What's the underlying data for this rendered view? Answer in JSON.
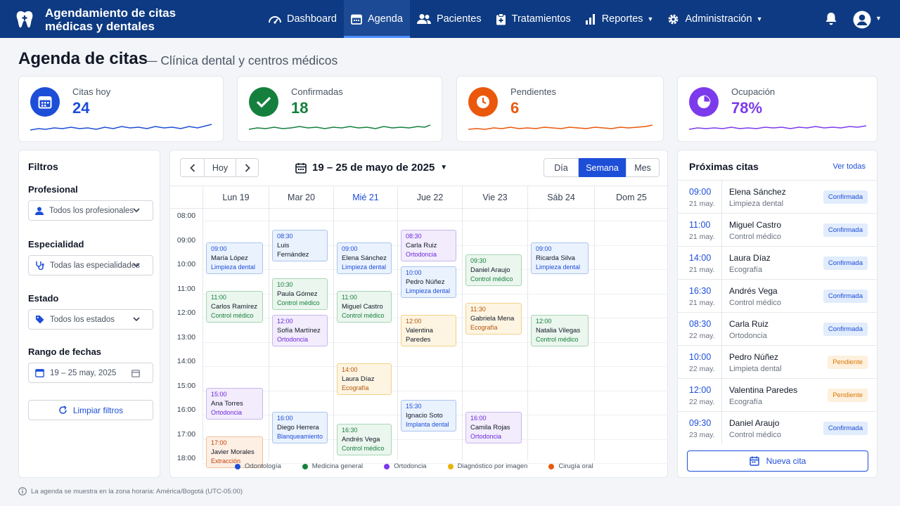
{
  "app": {
    "title": "Agendamiento de citas médicas y dentales"
  },
  "nav": {
    "items": [
      {
        "label": "Dashboard",
        "icon": "gauge-icon"
      },
      {
        "label": "Agenda",
        "icon": "calendar-icon",
        "active": true
      },
      {
        "label": "Pacientes",
        "icon": "users-icon"
      },
      {
        "label": "Tratamientos",
        "icon": "clipboard-icon"
      },
      {
        "label": "Reportes",
        "icon": "bar-chart-icon",
        "dropdown": true
      },
      {
        "label": "Administración",
        "icon": "gear-icon",
        "dropdown": true
      }
    ]
  },
  "page": {
    "title": "Agenda de citas",
    "subtitle": "— Clínica dental y centros médicos"
  },
  "stats": [
    {
      "label": "Citas hoy",
      "value": "24",
      "color": "#1d4ed8",
      "icon": "calendar-icon"
    },
    {
      "label": "Confirmadas",
      "value": "18",
      "color": "#15803d",
      "icon": "check-icon"
    },
    {
      "label": "Pendientes",
      "value": "6",
      "color": "#ea580c",
      "icon": "clock-icon"
    },
    {
      "label": "Ocupación",
      "value": "78%",
      "color": "#7c3aed",
      "icon": "pie-icon"
    }
  ],
  "filters": {
    "title": "Filtros",
    "profesional": {
      "label": "Profesional",
      "value": "Todos los profesionales"
    },
    "especialidad": {
      "label": "Especialidad",
      "value": "Todas las especialidades"
    },
    "estado": {
      "label": "Estado",
      "value": "Todos los estados"
    },
    "rango": {
      "label": "Rango de fechas",
      "value": "19 – 25 may, 2025"
    },
    "clear": "Limpiar filtros"
  },
  "calendar": {
    "today_btn": "Hoy",
    "range": "19 – 25 de mayo de 2025",
    "views": [
      "Día",
      "Semana",
      "Mes"
    ],
    "active_view": "Semana",
    "days": [
      "Lun 19",
      "Mar 20",
      "Mié 21",
      "Jue 22",
      "Vie 23",
      "Sáb 24",
      "Dom 25"
    ],
    "today_index": 2,
    "hours": [
      "08:00",
      "09:00",
      "10:00",
      "11:00",
      "12:00",
      "13:00",
      "14:00",
      "15:00",
      "16:00",
      "17:00",
      "18:00"
    ],
    "appointments": [
      {
        "day": 0,
        "start": "09:00",
        "time": "09:00",
        "name": "María López",
        "treatment": "Limpieza dental",
        "type": "odontologia"
      },
      {
        "day": 0,
        "start": "11:00",
        "time": "11:00",
        "name": "Carlos Ramírez",
        "treatment": "Control médico",
        "type": "medicina"
      },
      {
        "day": 0,
        "start": "15:00",
        "time": "15:00",
        "name": "Ana Torres",
        "treatment": "Ortodoncia",
        "type": "ortodoncia"
      },
      {
        "day": 0,
        "start": "17:00",
        "time": "17:00",
        "name": "Javier Morales",
        "treatment": "Extracción dental",
        "type": "cirugia"
      },
      {
        "day": 1,
        "start": "08:30",
        "time": "08:30",
        "name": "Luis Fernández",
        "treatment": "Limpieza dental",
        "type": "odontologia"
      },
      {
        "day": 1,
        "start": "10:30",
        "time": "10:30",
        "name": "Paula Gómez",
        "treatment": "Control médico",
        "type": "medicina"
      },
      {
        "day": 1,
        "start": "12:00",
        "time": "12:00",
        "name": "Sofía Martínez",
        "treatment": "Ortodoncia",
        "type": "ortodoncia"
      },
      {
        "day": 1,
        "start": "16:00",
        "time": "16:00",
        "name": "Diego Herrera",
        "treatment": "Blanqueamiento",
        "type": "odontologia"
      },
      {
        "day": 2,
        "start": "09:00",
        "time": "09:00",
        "name": "Elena Sánchez",
        "treatment": "Limpieza dental",
        "type": "odontologia"
      },
      {
        "day": 2,
        "start": "11:00",
        "time": "11:00",
        "name": "Miguel Castro",
        "treatment": "Control médico",
        "type": "medicina"
      },
      {
        "day": 2,
        "start": "14:00",
        "time": "14:00",
        "name": "Laura Díaz",
        "treatment": "Ecografía",
        "type": "diagnostico"
      },
      {
        "day": 2,
        "start": "16:30",
        "time": "16:30",
        "name": "Andrés Vega",
        "treatment": "Control médico",
        "type": "medicina"
      },
      {
        "day": 3,
        "start": "08:30",
        "time": "08:30",
        "name": "Carla Ruiz",
        "treatment": "Ortodoncia",
        "type": "ortodoncia"
      },
      {
        "day": 3,
        "start": "10:00",
        "time": "10:00",
        "name": "Pedro Núñez",
        "treatment": "Limpieza dental",
        "type": "odontologia"
      },
      {
        "day": 3,
        "start": "12:00",
        "time": "12:00",
        "name": "Valentina Paredes",
        "treatment": "Ecografía",
        "type": "diagnostico"
      },
      {
        "day": 3,
        "start": "15:30",
        "time": "15:30",
        "name": "Ignacio Soto",
        "treatment": "Implanta dental",
        "type": "odontologia"
      },
      {
        "day": 4,
        "start": "09:30",
        "time": "09:30",
        "name": "Daniel Araujo",
        "treatment": "Control médico",
        "type": "medicina"
      },
      {
        "day": 4,
        "start": "11:30",
        "time": "11:30",
        "name": "Gabriela Mena",
        "treatment": "Ecografía",
        "type": "diagnostico"
      },
      {
        "day": 4,
        "start": "16:00",
        "time": "16:00",
        "name": "Camila Rojas",
        "treatment": "Ortodoncia",
        "type": "ortodoncia"
      },
      {
        "day": 5,
        "start": "09:00",
        "time": "09:00",
        "name": "Ricarda Silva",
        "treatment": "Limpieza dental",
        "type": "odontologia"
      },
      {
        "day": 5,
        "start": "12:00",
        "time": "12:00",
        "name": "Natalia Vilegas",
        "treatment": "Control médico",
        "type": "medicina"
      }
    ],
    "legend": [
      {
        "key": "odontologia",
        "label": "Odontología",
        "color": "#1d4ed8"
      },
      {
        "key": "medicina",
        "label": "Medicina general",
        "color": "#15803d"
      },
      {
        "key": "ortodoncia",
        "label": "Ortodoncia",
        "color": "#7c3aed"
      },
      {
        "key": "diagnostico",
        "label": "Diagnóstico por imagen",
        "color": "#eab308"
      },
      {
        "key": "cirugia",
        "label": "Cirugía oral",
        "color": "#ea580c"
      }
    ]
  },
  "upcoming": {
    "title": "Próximas citas",
    "see_all": "Ver todas",
    "items": [
      {
        "time": "09:00",
        "date": "21 may.",
        "name": "Elena Sánchez",
        "treatment": "Limpieza dental",
        "status": "Confirmada",
        "kind": "ok"
      },
      {
        "time": "11:00",
        "date": "21 may.",
        "name": "Miguel Castro",
        "treatment": "Control médico",
        "status": "Confirmada",
        "kind": "ok"
      },
      {
        "time": "14:00",
        "date": "21 may.",
        "name": "Laura Díaz",
        "treatment": "Ecografía",
        "status": "Confirmada",
        "kind": "ok"
      },
      {
        "time": "16:30",
        "date": "21 may.",
        "name": "Andrés Vega",
        "treatment": "Control médico",
        "status": "Confirmada",
        "kind": "ok"
      },
      {
        "time": "08:30",
        "date": "22 may.",
        "name": "Carla Ruiz",
        "treatment": "Ortodoncia",
        "status": "Confirmada",
        "kind": "ok"
      },
      {
        "time": "10:00",
        "date": "22 may.",
        "name": "Pedro Núñez",
        "treatment": "Limpieta dental",
        "status": "Pendiente",
        "kind": "pend"
      },
      {
        "time": "12:00",
        "date": "22 may.",
        "name": "Valentina Paredes",
        "treatment": "Ecografía",
        "status": "Pendiente",
        "kind": "pend"
      },
      {
        "time": "09:30",
        "date": "23 may.",
        "name": "Daniel Araujo",
        "treatment": "Control médico",
        "status": "Confirmada",
        "kind": "ok"
      }
    ],
    "new_btn": "Nueva cita"
  },
  "footer": {
    "note": "La agenda se muestra en la zona horaria: América/Bogotá (UTC-05:00)"
  }
}
